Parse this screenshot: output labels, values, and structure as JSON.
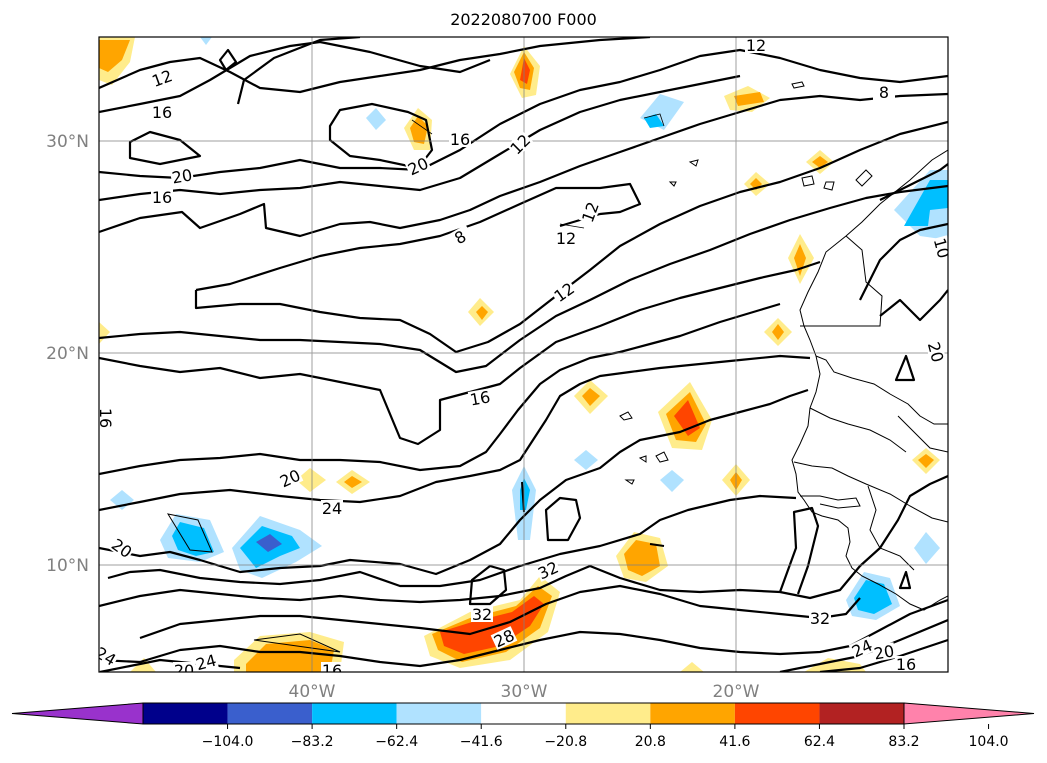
{
  "title": "2022080700 F000",
  "map": {
    "lat_ticks": [
      {
        "value": 30,
        "label": "30°N"
      },
      {
        "value": 20,
        "label": "20°N"
      },
      {
        "value": 10,
        "label": "10°N"
      }
    ],
    "lon_ticks": [
      {
        "value": -40,
        "label": "40°W"
      },
      {
        "value": -30,
        "label": "30°W"
      },
      {
        "value": -20,
        "label": "20°W"
      }
    ],
    "contour_labels": [
      "12",
      "12",
      "8",
      "16",
      "16",
      "12",
      "20",
      "20",
      "16",
      "8",
      "12",
      "12",
      "12",
      "16",
      "16",
      "20",
      "20",
      "24",
      "20",
      "32",
      "32",
      "28",
      "32",
      "24",
      "20",
      "16",
      "24",
      "20",
      "24",
      "16",
      "10"
    ]
  },
  "colorbar": {
    "colors": [
      "#9932cc",
      "#00008b",
      "#3a5fcd",
      "#00bfff",
      "#b0e2ff",
      "#ffffff",
      "#ffec8b",
      "#ffa500",
      "#ff4500",
      "#b22222",
      "#ff82ab"
    ],
    "tick_labels": [
      "−104.0",
      "−83.2",
      "−62.4",
      "−41.6",
      "−20.8",
      "20.8",
      "41.6",
      "62.4",
      "83.2",
      "104.0"
    ]
  }
}
